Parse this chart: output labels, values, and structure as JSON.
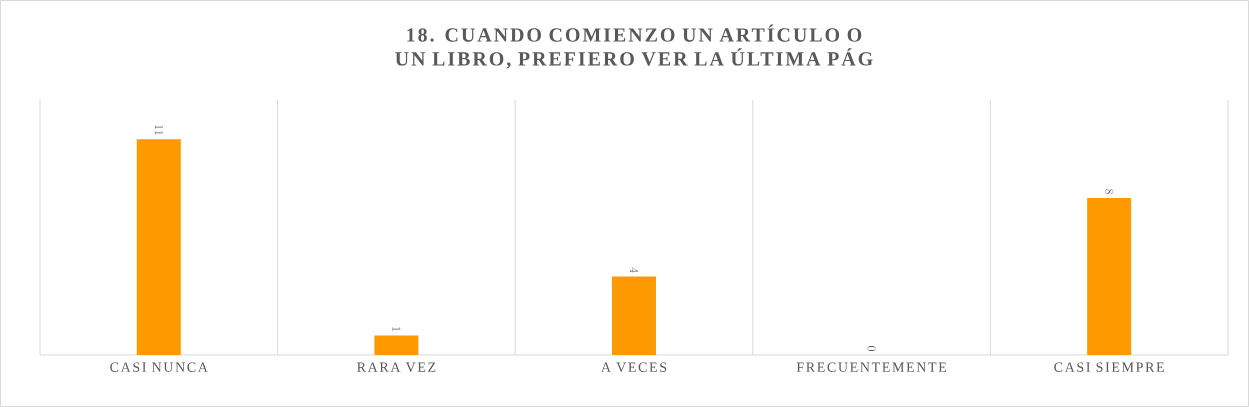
{
  "chart_data": {
    "type": "bar",
    "title": "18. CUANDO COMIENZO UN ARTÍCULO O UN LIBRO, PREFIERO VER LA ÚLTIMA PÁG",
    "categories": [
      "CASI NUNCA",
      "RARA VEZ",
      "A VECES",
      "FRECUENTEMENTE",
      "CASI SIEMPRE"
    ],
    "values": [
      11,
      1,
      4,
      0,
      8
    ],
    "color": "#ff9900",
    "ylim": [
      0,
      13
    ],
    "data_labels": true,
    "grid": "x"
  }
}
